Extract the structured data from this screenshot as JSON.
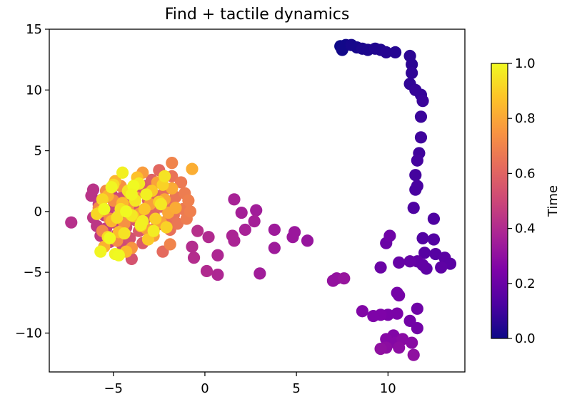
{
  "chart_data": {
    "type": "scatter",
    "title": "Find + tactile dynamics",
    "xlabel": "",
    "ylabel": "",
    "xlim": [
      -8.5,
      14.2
    ],
    "ylim": [
      -13.2,
      15.0
    ],
    "x_ticks": [
      -5,
      0,
      5,
      10
    ],
    "x_tick_labels": [
      "−5",
      "0",
      "5",
      "10"
    ],
    "y_ticks": [
      -10,
      -5,
      0,
      5,
      10,
      15
    ],
    "y_tick_labels": [
      "−10",
      "−5",
      "0",
      "5",
      "10",
      "15"
    ],
    "grid": false,
    "colormap": "plasma",
    "colorbar": {
      "label": "Time",
      "range": [
        0.0,
        1.0
      ],
      "ticks": [
        0.0,
        0.2,
        0.4,
        0.6,
        0.8,
        1.0
      ],
      "tick_labels": [
        "0.0",
        "0.2",
        "0.4",
        "0.6",
        "0.8",
        "1.0"
      ]
    },
    "points": [
      {
        "x": 7.4,
        "y": 13.6,
        "t": 0.0
      },
      {
        "x": 7.5,
        "y": 13.3,
        "t": 0.01
      },
      {
        "x": 7.7,
        "y": 13.7,
        "t": 0.01
      },
      {
        "x": 8.0,
        "y": 13.7,
        "t": 0.02
      },
      {
        "x": 8.3,
        "y": 13.5,
        "t": 0.02
      },
      {
        "x": 8.6,
        "y": 13.4,
        "t": 0.03
      },
      {
        "x": 8.9,
        "y": 13.3,
        "t": 0.03
      },
      {
        "x": 9.3,
        "y": 13.4,
        "t": 0.04
      },
      {
        "x": 9.6,
        "y": 13.3,
        "t": 0.04
      },
      {
        "x": 9.9,
        "y": 13.1,
        "t": 0.05
      },
      {
        "x": 10.4,
        "y": 13.1,
        "t": 0.05
      },
      {
        "x": 11.2,
        "y": 12.8,
        "t": 0.06
      },
      {
        "x": 11.3,
        "y": 12.1,
        "t": 0.06
      },
      {
        "x": 11.3,
        "y": 11.4,
        "t": 0.07
      },
      {
        "x": 11.2,
        "y": 10.5,
        "t": 0.07
      },
      {
        "x": 11.5,
        "y": 10.0,
        "t": 0.08
      },
      {
        "x": 11.8,
        "y": 9.6,
        "t": 0.08
      },
      {
        "x": 11.9,
        "y": 9.1,
        "t": 0.09
      },
      {
        "x": 11.8,
        "y": 7.8,
        "t": 0.09
      },
      {
        "x": 11.8,
        "y": 6.1,
        "t": 0.1
      },
      {
        "x": 11.7,
        "y": 4.8,
        "t": 0.1
      },
      {
        "x": 11.6,
        "y": 4.2,
        "t": 0.11
      },
      {
        "x": 11.5,
        "y": 3.0,
        "t": 0.11
      },
      {
        "x": 11.6,
        "y": 2.1,
        "t": 0.12
      },
      {
        "x": 11.5,
        "y": 1.8,
        "t": 0.12
      },
      {
        "x": 11.4,
        "y": 0.3,
        "t": 0.13
      },
      {
        "x": 12.5,
        "y": -0.6,
        "t": 0.13
      },
      {
        "x": 11.9,
        "y": -2.2,
        "t": 0.14
      },
      {
        "x": 12.5,
        "y": -2.3,
        "t": 0.14
      },
      {
        "x": 12.0,
        "y": -3.4,
        "t": 0.15
      },
      {
        "x": 12.6,
        "y": -3.5,
        "t": 0.15
      },
      {
        "x": 13.1,
        "y": -3.8,
        "t": 0.16
      },
      {
        "x": 13.4,
        "y": -4.3,
        "t": 0.16
      },
      {
        "x": 12.9,
        "y": -4.6,
        "t": 0.17
      },
      {
        "x": 12.1,
        "y": -4.7,
        "t": 0.17
      },
      {
        "x": 11.9,
        "y": -4.4,
        "t": 0.18
      },
      {
        "x": 11.6,
        "y": -4.1,
        "t": 0.18
      },
      {
        "x": 11.2,
        "y": -4.1,
        "t": 0.19
      },
      {
        "x": 10.6,
        "y": -4.2,
        "t": 0.19
      },
      {
        "x": 9.6,
        "y": -4.6,
        "t": 0.2
      },
      {
        "x": 9.9,
        "y": -2.6,
        "t": 0.2
      },
      {
        "x": 10.1,
        "y": -2.0,
        "t": 0.21
      },
      {
        "x": 11.6,
        "y": -8.0,
        "t": 0.21
      },
      {
        "x": 11.2,
        "y": -9.0,
        "t": 0.22
      },
      {
        "x": 11.6,
        "y": -9.6,
        "t": 0.22
      },
      {
        "x": 10.5,
        "y": -6.7,
        "t": 0.23
      },
      {
        "x": 10.6,
        "y": -6.9,
        "t": 0.23
      },
      {
        "x": 10.5,
        "y": -8.4,
        "t": 0.24
      },
      {
        "x": 10.0,
        "y": -8.5,
        "t": 0.24
      },
      {
        "x": 9.6,
        "y": -8.5,
        "t": 0.25
      },
      {
        "x": 9.2,
        "y": -8.6,
        "t": 0.25
      },
      {
        "x": 8.6,
        "y": -8.2,
        "t": 0.26
      },
      {
        "x": 10.3,
        "y": -10.2,
        "t": 0.26
      },
      {
        "x": 9.9,
        "y": -10.5,
        "t": 0.27
      },
      {
        "x": 10.4,
        "y": -10.8,
        "t": 0.27
      },
      {
        "x": 10.8,
        "y": -10.5,
        "t": 0.28
      },
      {
        "x": 11.3,
        "y": -10.8,
        "t": 0.28
      },
      {
        "x": 10.6,
        "y": -11.2,
        "t": 0.29
      },
      {
        "x": 9.9,
        "y": -11.2,
        "t": 0.29
      },
      {
        "x": 9.6,
        "y": -11.3,
        "t": 0.3
      },
      {
        "x": 11.4,
        "y": -11.8,
        "t": 0.3
      },
      {
        "x": 7.0,
        "y": -5.7,
        "t": 0.31
      },
      {
        "x": 7.2,
        "y": -5.5,
        "t": 0.31
      },
      {
        "x": 7.6,
        "y": -5.5,
        "t": 0.32
      },
      {
        "x": 5.6,
        "y": -2.4,
        "t": 0.32
      },
      {
        "x": 4.8,
        "y": -2.1,
        "t": 0.33
      },
      {
        "x": 4.9,
        "y": -1.7,
        "t": 0.33
      },
      {
        "x": 3.8,
        "y": -1.5,
        "t": 0.34
      },
      {
        "x": 3.8,
        "y": -3.0,
        "t": 0.34
      },
      {
        "x": 3.0,
        "y": -5.1,
        "t": 0.35
      },
      {
        "x": 2.8,
        "y": 0.1,
        "t": 0.35
      },
      {
        "x": 2.7,
        "y": -0.8,
        "t": 0.36
      },
      {
        "x": 2.0,
        "y": -0.1,
        "t": 0.36
      },
      {
        "x": 2.2,
        "y": -1.5,
        "t": 0.37
      },
      {
        "x": 1.6,
        "y": 1.0,
        "t": 0.37
      },
      {
        "x": 1.5,
        "y": -2.0,
        "t": 0.38
      },
      {
        "x": 1.6,
        "y": -2.4,
        "t": 0.38
      },
      {
        "x": 0.7,
        "y": -3.6,
        "t": 0.39
      },
      {
        "x": 0.7,
        "y": -5.2,
        "t": 0.39
      },
      {
        "x": 0.1,
        "y": -4.9,
        "t": 0.4
      },
      {
        "x": 0.2,
        "y": -2.1,
        "t": 0.4
      },
      {
        "x": -0.7,
        "y": -2.9,
        "t": 0.41
      },
      {
        "x": -0.6,
        "y": -3.8,
        "t": 0.41
      },
      {
        "x": -0.4,
        "y": -1.6,
        "t": 0.42
      },
      {
        "x": -7.3,
        "y": -0.9,
        "t": 0.42
      },
      {
        "x": -6.1,
        "y": 1.8,
        "t": 0.43
      },
      {
        "x": -6.2,
        "y": 1.3,
        "t": 0.43
      },
      {
        "x": -6.1,
        "y": -0.5,
        "t": 0.44
      },
      {
        "x": -5.9,
        "y": -1.2,
        "t": 0.44
      },
      {
        "x": -5.8,
        "y": 0.6,
        "t": 0.45
      },
      {
        "x": -5.7,
        "y": -2.0,
        "t": 0.45
      },
      {
        "x": -5.6,
        "y": 1.0,
        "t": 0.46
      },
      {
        "x": -5.5,
        "y": -0.3,
        "t": 0.46
      },
      {
        "x": -5.4,
        "y": -1.4,
        "t": 0.47
      },
      {
        "x": -5.3,
        "y": 0.1,
        "t": 0.47
      },
      {
        "x": -5.2,
        "y": -2.5,
        "t": 0.48
      },
      {
        "x": -5.1,
        "y": 1.4,
        "t": 0.48
      },
      {
        "x": -5.0,
        "y": -0.9,
        "t": 0.49
      },
      {
        "x": -4.9,
        "y": 0.5,
        "t": 0.49
      },
      {
        "x": -4.8,
        "y": -1.9,
        "t": 0.5
      },
      {
        "x": -4.7,
        "y": -0.4,
        "t": 0.5
      },
      {
        "x": -4.6,
        "y": 1.1,
        "t": 0.51
      },
      {
        "x": -4.5,
        "y": -2.8,
        "t": 0.51
      },
      {
        "x": -4.4,
        "y": -0.1,
        "t": 0.52
      },
      {
        "x": -4.3,
        "y": -1.3,
        "t": 0.52
      },
      {
        "x": -4.2,
        "y": 0.8,
        "t": 0.53
      },
      {
        "x": -4.1,
        "y": -2.2,
        "t": 0.53
      },
      {
        "x": -4.0,
        "y": -3.9,
        "t": 0.54
      },
      {
        "x": -3.9,
        "y": 0.3,
        "t": 0.54
      },
      {
        "x": -3.8,
        "y": -0.7,
        "t": 0.55
      },
      {
        "x": -3.7,
        "y": 1.6,
        "t": 0.55
      },
      {
        "x": -3.6,
        "y": -1.6,
        "t": 0.56
      },
      {
        "x": -3.5,
        "y": 0.0,
        "t": 0.56
      },
      {
        "x": -3.4,
        "y": -2.6,
        "t": 0.57
      },
      {
        "x": -3.3,
        "y": 2.1,
        "t": 0.57
      },
      {
        "x": -3.2,
        "y": -0.5,
        "t": 0.58
      },
      {
        "x": -3.1,
        "y": 0.9,
        "t": 0.58
      },
      {
        "x": -3.0,
        "y": -1.8,
        "t": 0.59
      },
      {
        "x": -2.9,
        "y": 2.6,
        "t": 0.59
      },
      {
        "x": -2.8,
        "y": -0.2,
        "t": 0.6
      },
      {
        "x": -2.7,
        "y": 1.3,
        "t": 0.6
      },
      {
        "x": -2.6,
        "y": -1.1,
        "t": 0.61
      },
      {
        "x": -2.5,
        "y": 3.4,
        "t": 0.61
      },
      {
        "x": -2.4,
        "y": 0.4,
        "t": 0.62
      },
      {
        "x": -2.3,
        "y": -3.3,
        "t": 0.62
      },
      {
        "x": -2.2,
        "y": 1.8,
        "t": 0.63
      },
      {
        "x": -2.1,
        "y": -0.8,
        "t": 0.63
      },
      {
        "x": -2.0,
        "y": 0.7,
        "t": 0.64
      },
      {
        "x": -1.9,
        "y": -1.5,
        "t": 0.64
      },
      {
        "x": -1.8,
        "y": 2.9,
        "t": 0.65
      },
      {
        "x": -1.7,
        "y": -0.3,
        "t": 0.65
      },
      {
        "x": -1.6,
        "y": 1.2,
        "t": 0.66
      },
      {
        "x": -1.5,
        "y": -1.0,
        "t": 0.66
      },
      {
        "x": -1.3,
        "y": 2.4,
        "t": 0.67
      },
      {
        "x": -1.2,
        "y": 0.2,
        "t": 0.67
      },
      {
        "x": -1.1,
        "y": 1.5,
        "t": 0.68
      },
      {
        "x": -1.0,
        "y": -0.6,
        "t": 0.68
      },
      {
        "x": -0.9,
        "y": 0.9,
        "t": 0.69
      },
      {
        "x": -0.8,
        "y": 0.0,
        "t": 0.69
      },
      {
        "x": -1.9,
        "y": -2.7,
        "t": 0.7
      },
      {
        "x": -1.8,
        "y": 4.0,
        "t": 0.7
      },
      {
        "x": -5.8,
        "y": 0.3,
        "t": 0.71
      },
      {
        "x": -5.6,
        "y": -1.6,
        "t": 0.71
      },
      {
        "x": -5.4,
        "y": 1.7,
        "t": 0.72
      },
      {
        "x": -5.2,
        "y": -0.6,
        "t": 0.72
      },
      {
        "x": -5.0,
        "y": 0.9,
        "t": 0.73
      },
      {
        "x": -4.8,
        "y": -2.4,
        "t": 0.73
      },
      {
        "x": -4.6,
        "y": 2.1,
        "t": 0.74
      },
      {
        "x": -4.4,
        "y": -1.0,
        "t": 0.74
      },
      {
        "x": -4.2,
        "y": 0.4,
        "t": 0.75
      },
      {
        "x": -4.0,
        "y": -3.0,
        "t": 0.75
      },
      {
        "x": -3.8,
        "y": 1.2,
        "t": 0.76
      },
      {
        "x": -3.6,
        "y": -0.2,
        "t": 0.76
      },
      {
        "x": -3.4,
        "y": 3.2,
        "t": 0.77
      },
      {
        "x": -3.2,
        "y": -1.4,
        "t": 0.77
      },
      {
        "x": -3.0,
        "y": 0.6,
        "t": 0.78
      },
      {
        "x": -2.8,
        "y": -2.0,
        "t": 0.78
      },
      {
        "x": -2.6,
        "y": 2.4,
        "t": 0.79
      },
      {
        "x": -2.4,
        "y": -0.9,
        "t": 0.79
      },
      {
        "x": -2.2,
        "y": 1.0,
        "t": 0.8
      },
      {
        "x": -2.0,
        "y": -0.1,
        "t": 0.8
      },
      {
        "x": -1.8,
        "y": 1.9,
        "t": 0.81
      },
      {
        "x": -1.6,
        "y": 0.3,
        "t": 0.81
      },
      {
        "x": -0.7,
        "y": 3.5,
        "t": 0.82
      },
      {
        "x": -5.7,
        "y": 0.0,
        "t": 0.82
      },
      {
        "x": -5.5,
        "y": -2.9,
        "t": 0.83
      },
      {
        "x": -5.3,
        "y": 1.3,
        "t": 0.83
      },
      {
        "x": -5.1,
        "y": -0.8,
        "t": 0.84
      },
      {
        "x": -4.9,
        "y": 2.5,
        "t": 0.84
      },
      {
        "x": -4.7,
        "y": -1.7,
        "t": 0.85
      },
      {
        "x": -4.5,
        "y": 0.7,
        "t": 0.85
      },
      {
        "x": -4.3,
        "y": -3.3,
        "t": 0.86
      },
      {
        "x": -4.1,
        "y": 1.5,
        "t": 0.86
      },
      {
        "x": -3.9,
        "y": -0.4,
        "t": 0.87
      },
      {
        "x": -3.7,
        "y": 2.8,
        "t": 0.87
      },
      {
        "x": -3.5,
        "y": -1.2,
        "t": 0.88
      },
      {
        "x": -3.3,
        "y": 0.2,
        "t": 0.88
      },
      {
        "x": -3.1,
        "y": -2.3,
        "t": 0.89
      },
      {
        "x": -2.9,
        "y": 1.7,
        "t": 0.89
      },
      {
        "x": -2.7,
        "y": -0.6,
        "t": 0.9
      },
      {
        "x": -2.5,
        "y": 0.8,
        "t": 0.9
      },
      {
        "x": -2.3,
        "y": 2.2,
        "t": 0.91
      },
      {
        "x": -2.1,
        "y": -1.3,
        "t": 0.91
      },
      {
        "x": -5.9,
        "y": -0.2,
        "t": 0.92
      },
      {
        "x": -5.6,
        "y": 1.0,
        "t": 0.92
      },
      {
        "x": -5.3,
        "y": -2.1,
        "t": 0.93
      },
      {
        "x": -5.0,
        "y": 2.2,
        "t": 0.93
      },
      {
        "x": -4.8,
        "y": -0.5,
        "t": 0.94
      },
      {
        "x": -4.6,
        "y": 0.2,
        "t": 0.94
      },
      {
        "x": -4.4,
        "y": -1.8,
        "t": 0.95
      },
      {
        "x": -4.2,
        "y": 1.7,
        "t": 0.95
      },
      {
        "x": -4.0,
        "y": -0.3,
        "t": 0.96
      },
      {
        "x": -3.8,
        "y": 0.9,
        "t": 0.96
      },
      {
        "x": -3.6,
        "y": 2.3,
        "t": 0.97
      },
      {
        "x": -3.4,
        "y": -0.8,
        "t": 0.97
      },
      {
        "x": -3.2,
        "y": 1.4,
        "t": 0.98
      },
      {
        "x": -4.5,
        "y": 3.2,
        "t": 0.98
      },
      {
        "x": -5.1,
        "y": 2.0,
        "t": 0.99
      },
      {
        "x": -4.9,
        "y": -3.5,
        "t": 0.99
      },
      {
        "x": -4.7,
        "y": -3.6,
        "t": 1.0
      },
      {
        "x": -5.5,
        "y": 0.2,
        "t": 1.0
      },
      {
        "x": -5.2,
        "y": -2.2,
        "t": 1.0
      },
      {
        "x": -4.3,
        "y": 0.0,
        "t": 1.0
      },
      {
        "x": -3.9,
        "y": 2.1,
        "t": 1.0
      },
      {
        "x": -5.7,
        "y": -3.3,
        "t": 0.99
      },
      {
        "x": -4.0,
        "y": 1.4,
        "t": 0.99
      },
      {
        "x": -3.5,
        "y": -1.1,
        "t": 0.98
      },
      {
        "x": -2.8,
        "y": -1.6,
        "t": 0.97
      },
      {
        "x": -2.4,
        "y": 0.6,
        "t": 0.96
      },
      {
        "x": -2.2,
        "y": 2.9,
        "t": 0.95
      }
    ]
  }
}
